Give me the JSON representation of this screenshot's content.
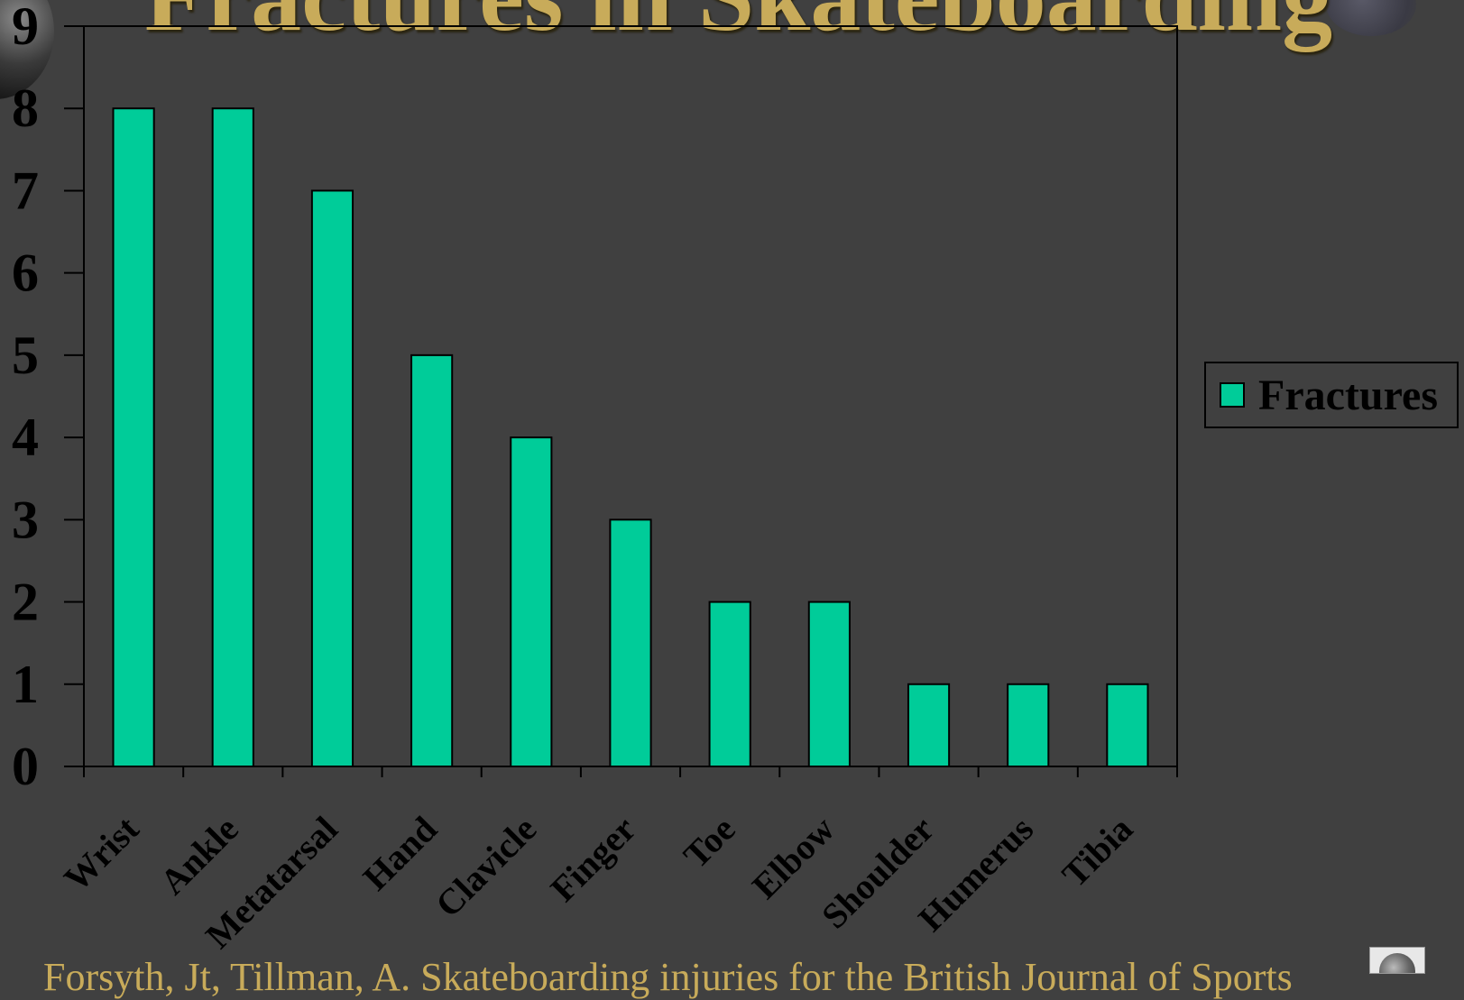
{
  "page": {
    "title": "Fractures in Skateboarding",
    "footer": "Forsyth, Jt, Tillman, A.  Skateboarding injuries for the British Journal of Sports"
  },
  "chart_data": {
    "type": "bar",
    "title": "",
    "xlabel": "",
    "ylabel": "",
    "categories": [
      "Wrist",
      "Ankle",
      "Metatarsal",
      "Hand",
      "Clavicle",
      "Finger",
      "Toe",
      "Elbow",
      "Shoulder",
      "Humerus",
      "Tibia"
    ],
    "series": [
      {
        "name": "Fractures",
        "values": [
          8,
          8,
          7,
          5,
          4,
          3,
          2,
          2,
          1,
          1,
          1
        ],
        "color": "#00cc99"
      }
    ],
    "ylim": [
      0,
      9
    ],
    "yticks": [
      0,
      1,
      2,
      3,
      4,
      5,
      6,
      7,
      8,
      9
    ],
    "grid": false,
    "legend": "right",
    "background": "#404040",
    "title_color": "#c8ab5a"
  }
}
